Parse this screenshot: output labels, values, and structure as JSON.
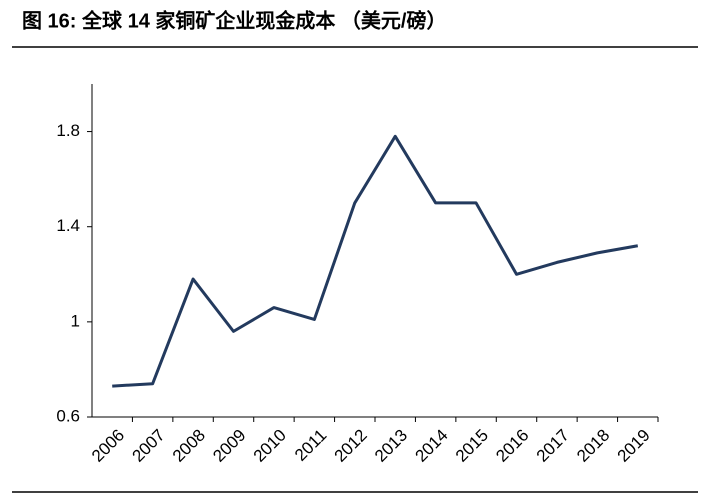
{
  "chart_data": {
    "type": "line",
    "title": "图 16: 全球 14 家铜矿企业现金成本 （美元/磅）",
    "categories": [
      "2006",
      "2007",
      "2008",
      "2009",
      "2010",
      "2011",
      "2012",
      "2013",
      "2014",
      "2015",
      "2016",
      "2017",
      "2018",
      "2019"
    ],
    "values": [
      0.73,
      0.74,
      1.18,
      0.96,
      1.06,
      1.01,
      1.5,
      1.78,
      1.5,
      1.5,
      1.2,
      1.25,
      1.29,
      1.32
    ],
    "color": "#233a5e",
    "ylim": [
      0.6,
      2.0
    ],
    "yticks": [
      0.6,
      1,
      1.4,
      1.8
    ]
  }
}
